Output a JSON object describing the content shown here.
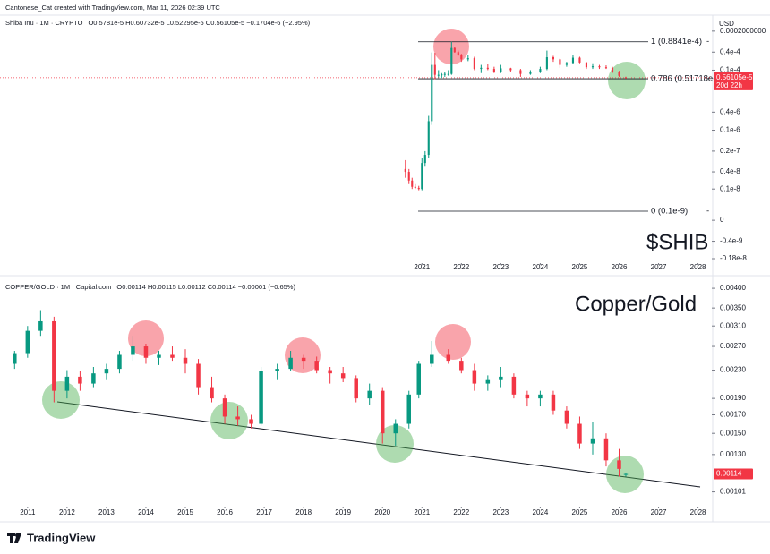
{
  "header": {
    "credit": "Cantonese_Cat created with TradingView.com, Mar 11, 2026 02:39 UTC"
  },
  "footer": {
    "brand": "TradingView"
  },
  "chart_data": [
    {
      "type": "candlestick",
      "title": "Shiba Inu · 1M · CRYPTO",
      "ohlc_legend": "O0.5781e-5  H0.60732e-5  L0.52295e-5  C0.56105e-5  −0.1704e-6 (−2.95%)",
      "currency": "USD",
      "annotation": "$SHIB",
      "scale": "symlog",
      "up_color": "#089981",
      "down_color": "#f23645",
      "x": [
        2020.58,
        2020.67,
        2020.75,
        2020.83,
        2020.92,
        2021.0,
        2021.08,
        2021.17,
        2021.25,
        2021.33,
        2021.42,
        2021.5,
        2021.58,
        2021.67,
        2021.75,
        2021.83,
        2021.92,
        2022.0,
        2022.17,
        2022.33,
        2022.5,
        2022.67,
        2022.83,
        2023.0,
        2023.25,
        2023.5,
        2023.75,
        2024.0,
        2024.17,
        2024.33,
        2024.5,
        2024.67,
        2024.83,
        2025.0,
        2025.17,
        2025.33,
        2025.5,
        2025.67,
        2025.83,
        2026.0,
        2026.17
      ],
      "open": [
        5e-09,
        4e-09,
        2e-09,
        1.2e-09,
        1.1e-09,
        1e-09,
        8e-09,
        1.5e-08,
        2e-07,
        1.5e-05,
        7e-06,
        7e-06,
        7.2e-06,
        7.5e-06,
        7.5e-06,
        5.5e-05,
        4e-05,
        3.3e-05,
        2.3e-05,
        2.5e-05,
        1.1e-05,
        1.2e-05,
        1.1e-05,
        8.5e-06,
        1.15e-05,
        1e-05,
        7.5e-06,
        9e-06,
        1.1e-05,
        2.7e-05,
        2.3e-05,
        1.5e-05,
        1.75e-05,
        2.6e-05,
        1.8e-05,
        1.25e-05,
        1.35e-05,
        1.25e-05,
        1.2e-05,
        8.5e-06,
        5.781e-06
      ],
      "high": [
        1e-08,
        5e-09,
        2.5e-09,
        1.5e-09,
        1.3e-09,
        1.2e-08,
        2e-08,
        3e-07,
        3.9e-05,
        3.8e-05,
        1e-05,
        8e-06,
        9e-06,
        1e-05,
        8.841e-05,
        6e-05,
        4.5e-05,
        3.5e-05,
        3.3e-05,
        2.8e-05,
        1.5e-05,
        1.6e-05,
        1.3e-05,
        1.5e-05,
        1.2e-05,
        1.1e-05,
        1e-05,
        1.3e-05,
        4.5e-05,
        3e-05,
        2.5e-05,
        1.9e-05,
        3.3e-05,
        2.8e-05,
        1.9e-05,
        1.7e-05,
        1.5e-05,
        1.45e-05,
        1.3e-05,
        9.5e-06,
        6.0732e-06
      ],
      "low": [
        2.5e-09,
        1.5e-09,
        1e-09,
        1e-09,
        9e-10,
        9e-10,
        6e-09,
        1.2e-08,
        1.5e-07,
        5e-06,
        5.5e-06,
        5.5e-06,
        6e-06,
        6.5e-06,
        7e-06,
        3.8e-05,
        3e-05,
        1.9e-05,
        2e-05,
        1e-05,
        8e-06,
        1e-05,
        8e-06,
        8e-06,
        9e-06,
        6e-06,
        7e-06,
        8e-06,
        1e-05,
        1.9e-05,
        1.2e-05,
        1.3e-05,
        1.6e-05,
        1.7e-05,
        1.1e-05,
        1.1e-05,
        1.1e-05,
        1.1e-05,
        8e-06,
        6e-06,
        5.2295e-06
      ],
      "close": [
        4e-09,
        2e-09,
        1.2e-09,
        1.1e-09,
        1e-09,
        8e-09,
        1.5e-08,
        2e-07,
        1.5e-05,
        7e-06,
        7e-06,
        7.2e-06,
        7.5e-06,
        7.5e-06,
        5.5e-05,
        4e-05,
        3.3e-05,
        2.3e-05,
        2.5e-05,
        1.1e-05,
        1.2e-05,
        1.1e-05,
        8.5e-06,
        1.15e-05,
        1e-05,
        7.5e-06,
        9e-06,
        1.1e-05,
        2.7e-05,
        2.3e-05,
        1.5e-05,
        1.75e-05,
        2.6e-05,
        1.8e-05,
        1.25e-05,
        1.35e-05,
        1.25e-05,
        1.2e-05,
        8.5e-06,
        6.5e-06,
        5.6105e-06
      ],
      "xlim": [
        2010.3,
        2028.35
      ],
      "xticks": [
        2021,
        2022,
        2023,
        2024,
        2025,
        2026,
        2027,
        2028
      ],
      "ylim": [
        -2.4e-09,
        0.00032
      ],
      "yticks": [
        {
          "value": 0.0002,
          "label": "0.0002000000"
        },
        {
          "value": 4e-05,
          "label": "0.4e-4"
        },
        {
          "value": 1e-05,
          "label": "0.1e-4"
        },
        {
          "value": 4e-07,
          "label": "0.4e-6"
        },
        {
          "value": 1e-07,
          "label": "0.1e-6"
        },
        {
          "value": 2e-08,
          "label": "0.2e-7"
        },
        {
          "value": 4e-09,
          "label": "0.4e-8"
        },
        {
          "value": 1e-09,
          "label": "0.1e-8"
        },
        0,
        {
          "value": -4e-10,
          "label": "-0.4e-9"
        },
        {
          "value": -1.8e-09,
          "label": "-0.18e-8"
        }
      ],
      "levels": [
        {
          "value": 8.841e-05,
          "label": "1 (0.8841e-4)"
        },
        {
          "value": 5.1718e-06,
          "label": "0.786 (0.51718e-5)"
        },
        {
          "value": 1e-10,
          "label": "0 (0.1e-9)"
        }
      ],
      "last_price": {
        "value": 5.6105e-06,
        "label": "0.56105e-5"
      },
      "countdown": "20d 22h"
    },
    {
      "type": "candlestick",
      "title": "COPPER/GOLD · 1M · Capital.com",
      "ohlc_legend": "O0.00114  H0.00115  L0.00112  C0.00114  −0.00001 (−0.65%)",
      "annotation": "Copper/Gold",
      "scale": "log",
      "up_color": "#089981",
      "down_color": "#f23645",
      "x": [
        2010.67,
        2011.0,
        2011.33,
        2011.67,
        2012.0,
        2012.33,
        2012.67,
        2013.0,
        2013.33,
        2013.67,
        2014.0,
        2014.33,
        2014.67,
        2015.0,
        2015.33,
        2015.67,
        2016.0,
        2016.33,
        2016.67,
        2016.92,
        2017.33,
        2017.67,
        2018.0,
        2018.33,
        2018.67,
        2019.0,
        2019.33,
        2019.67,
        2020.0,
        2020.33,
        2020.67,
        2020.92,
        2021.25,
        2021.67,
        2022.0,
        2022.33,
        2022.67,
        2023.0,
        2023.33,
        2023.67,
        2024.0,
        2024.33,
        2024.67,
        2025.0,
        2025.33,
        2025.67,
        2026.0,
        2026.17
      ],
      "open": [
        0.0024,
        0.00258,
        0.003,
        0.0032,
        0.002,
        0.0022,
        0.0021,
        0.00225,
        0.00232,
        0.00255,
        0.0027,
        0.0025,
        0.00255,
        0.0025,
        0.0024,
        0.00205,
        0.0019,
        0.00168,
        0.00165,
        0.0016,
        0.00228,
        0.00232,
        0.0025,
        0.00245,
        0.0023,
        0.00225,
        0.00218,
        0.0019,
        0.002,
        0.0015,
        0.0016,
        0.00195,
        0.0024,
        0.00255,
        0.00245,
        0.0023,
        0.0021,
        0.00215,
        0.0022,
        0.00195,
        0.0019,
        0.00195,
        0.00175,
        0.0016,
        0.0014,
        0.00145,
        0.00125,
        0.00114
      ],
      "high": [
        0.00262,
        0.0031,
        0.00345,
        0.0033,
        0.0023,
        0.00228,
        0.00235,
        0.0024,
        0.00262,
        0.0029,
        0.00275,
        0.00262,
        0.0027,
        0.00265,
        0.00248,
        0.0022,
        0.00195,
        0.0018,
        0.0017,
        0.00235,
        0.0024,
        0.00262,
        0.00255,
        0.00252,
        0.00235,
        0.00235,
        0.00222,
        0.0021,
        0.00205,
        0.00165,
        0.002,
        0.00245,
        0.0028,
        0.00265,
        0.0025,
        0.0024,
        0.00222,
        0.00235,
        0.00225,
        0.002,
        0.002,
        0.002,
        0.0018,
        0.00168,
        0.00162,
        0.0015,
        0.00135,
        0.00115
      ],
      "low": [
        0.00232,
        0.0025,
        0.0029,
        0.00185,
        0.0019,
        0.002,
        0.00205,
        0.00215,
        0.00225,
        0.00245,
        0.0024,
        0.00238,
        0.00245,
        0.00225,
        0.00195,
        0.00185,
        0.0016,
        0.00158,
        0.00155,
        0.00158,
        0.00215,
        0.00228,
        0.00232,
        0.00225,
        0.0021,
        0.00212,
        0.00185,
        0.00182,
        0.0014,
        0.00138,
        0.00155,
        0.0019,
        0.00235,
        0.0024,
        0.00225,
        0.002,
        0.002,
        0.00205,
        0.0019,
        0.0018,
        0.0018,
        0.0017,
        0.00155,
        0.00135,
        0.0013,
        0.0012,
        0.00112,
        0.00112
      ],
      "close": [
        0.00258,
        0.003,
        0.0032,
        0.002,
        0.0022,
        0.0021,
        0.00225,
        0.00232,
        0.00255,
        0.0027,
        0.0025,
        0.00255,
        0.0025,
        0.0024,
        0.00205,
        0.0019,
        0.00168,
        0.00165,
        0.0016,
        0.00228,
        0.00232,
        0.0025,
        0.00245,
        0.0023,
        0.00225,
        0.00218,
        0.0019,
        0.002,
        0.0015,
        0.0016,
        0.00195,
        0.0024,
        0.00255,
        0.00245,
        0.0023,
        0.0021,
        0.00215,
        0.0022,
        0.00195,
        0.0019,
        0.00195,
        0.00175,
        0.0016,
        0.0014,
        0.00145,
        0.00125,
        0.00118,
        0.00114
      ],
      "xlim": [
        2010.3,
        2028.35
      ],
      "xticks": [
        2011,
        2012,
        2013,
        2014,
        2015,
        2016,
        2017,
        2018,
        2019,
        2020,
        2021,
        2022,
        2023,
        2024,
        2025,
        2026,
        2027,
        2028
      ],
      "ylim": [
        0.00092,
        0.0041
      ],
      "yticks": [
        {
          "value": 0.004,
          "label": "0.00400"
        },
        {
          "value": 0.0035,
          "label": "0.00350"
        },
        {
          "value": 0.0031,
          "label": "0.00310"
        },
        {
          "value": 0.0027,
          "label": "0.00270"
        },
        {
          "value": 0.0023,
          "label": "0.00230"
        },
        {
          "value": 0.0019,
          "label": "0.00190"
        },
        {
          "value": 0.0017,
          "label": "0.00170"
        },
        {
          "value": 0.0015,
          "label": "0.00150"
        },
        {
          "value": 0.0013,
          "label": "0.00130"
        },
        {
          "value": 0.00101,
          "label": "0.00101"
        }
      ],
      "last_price": {
        "value": 0.00114,
        "label": "0.00114"
      }
    }
  ]
}
